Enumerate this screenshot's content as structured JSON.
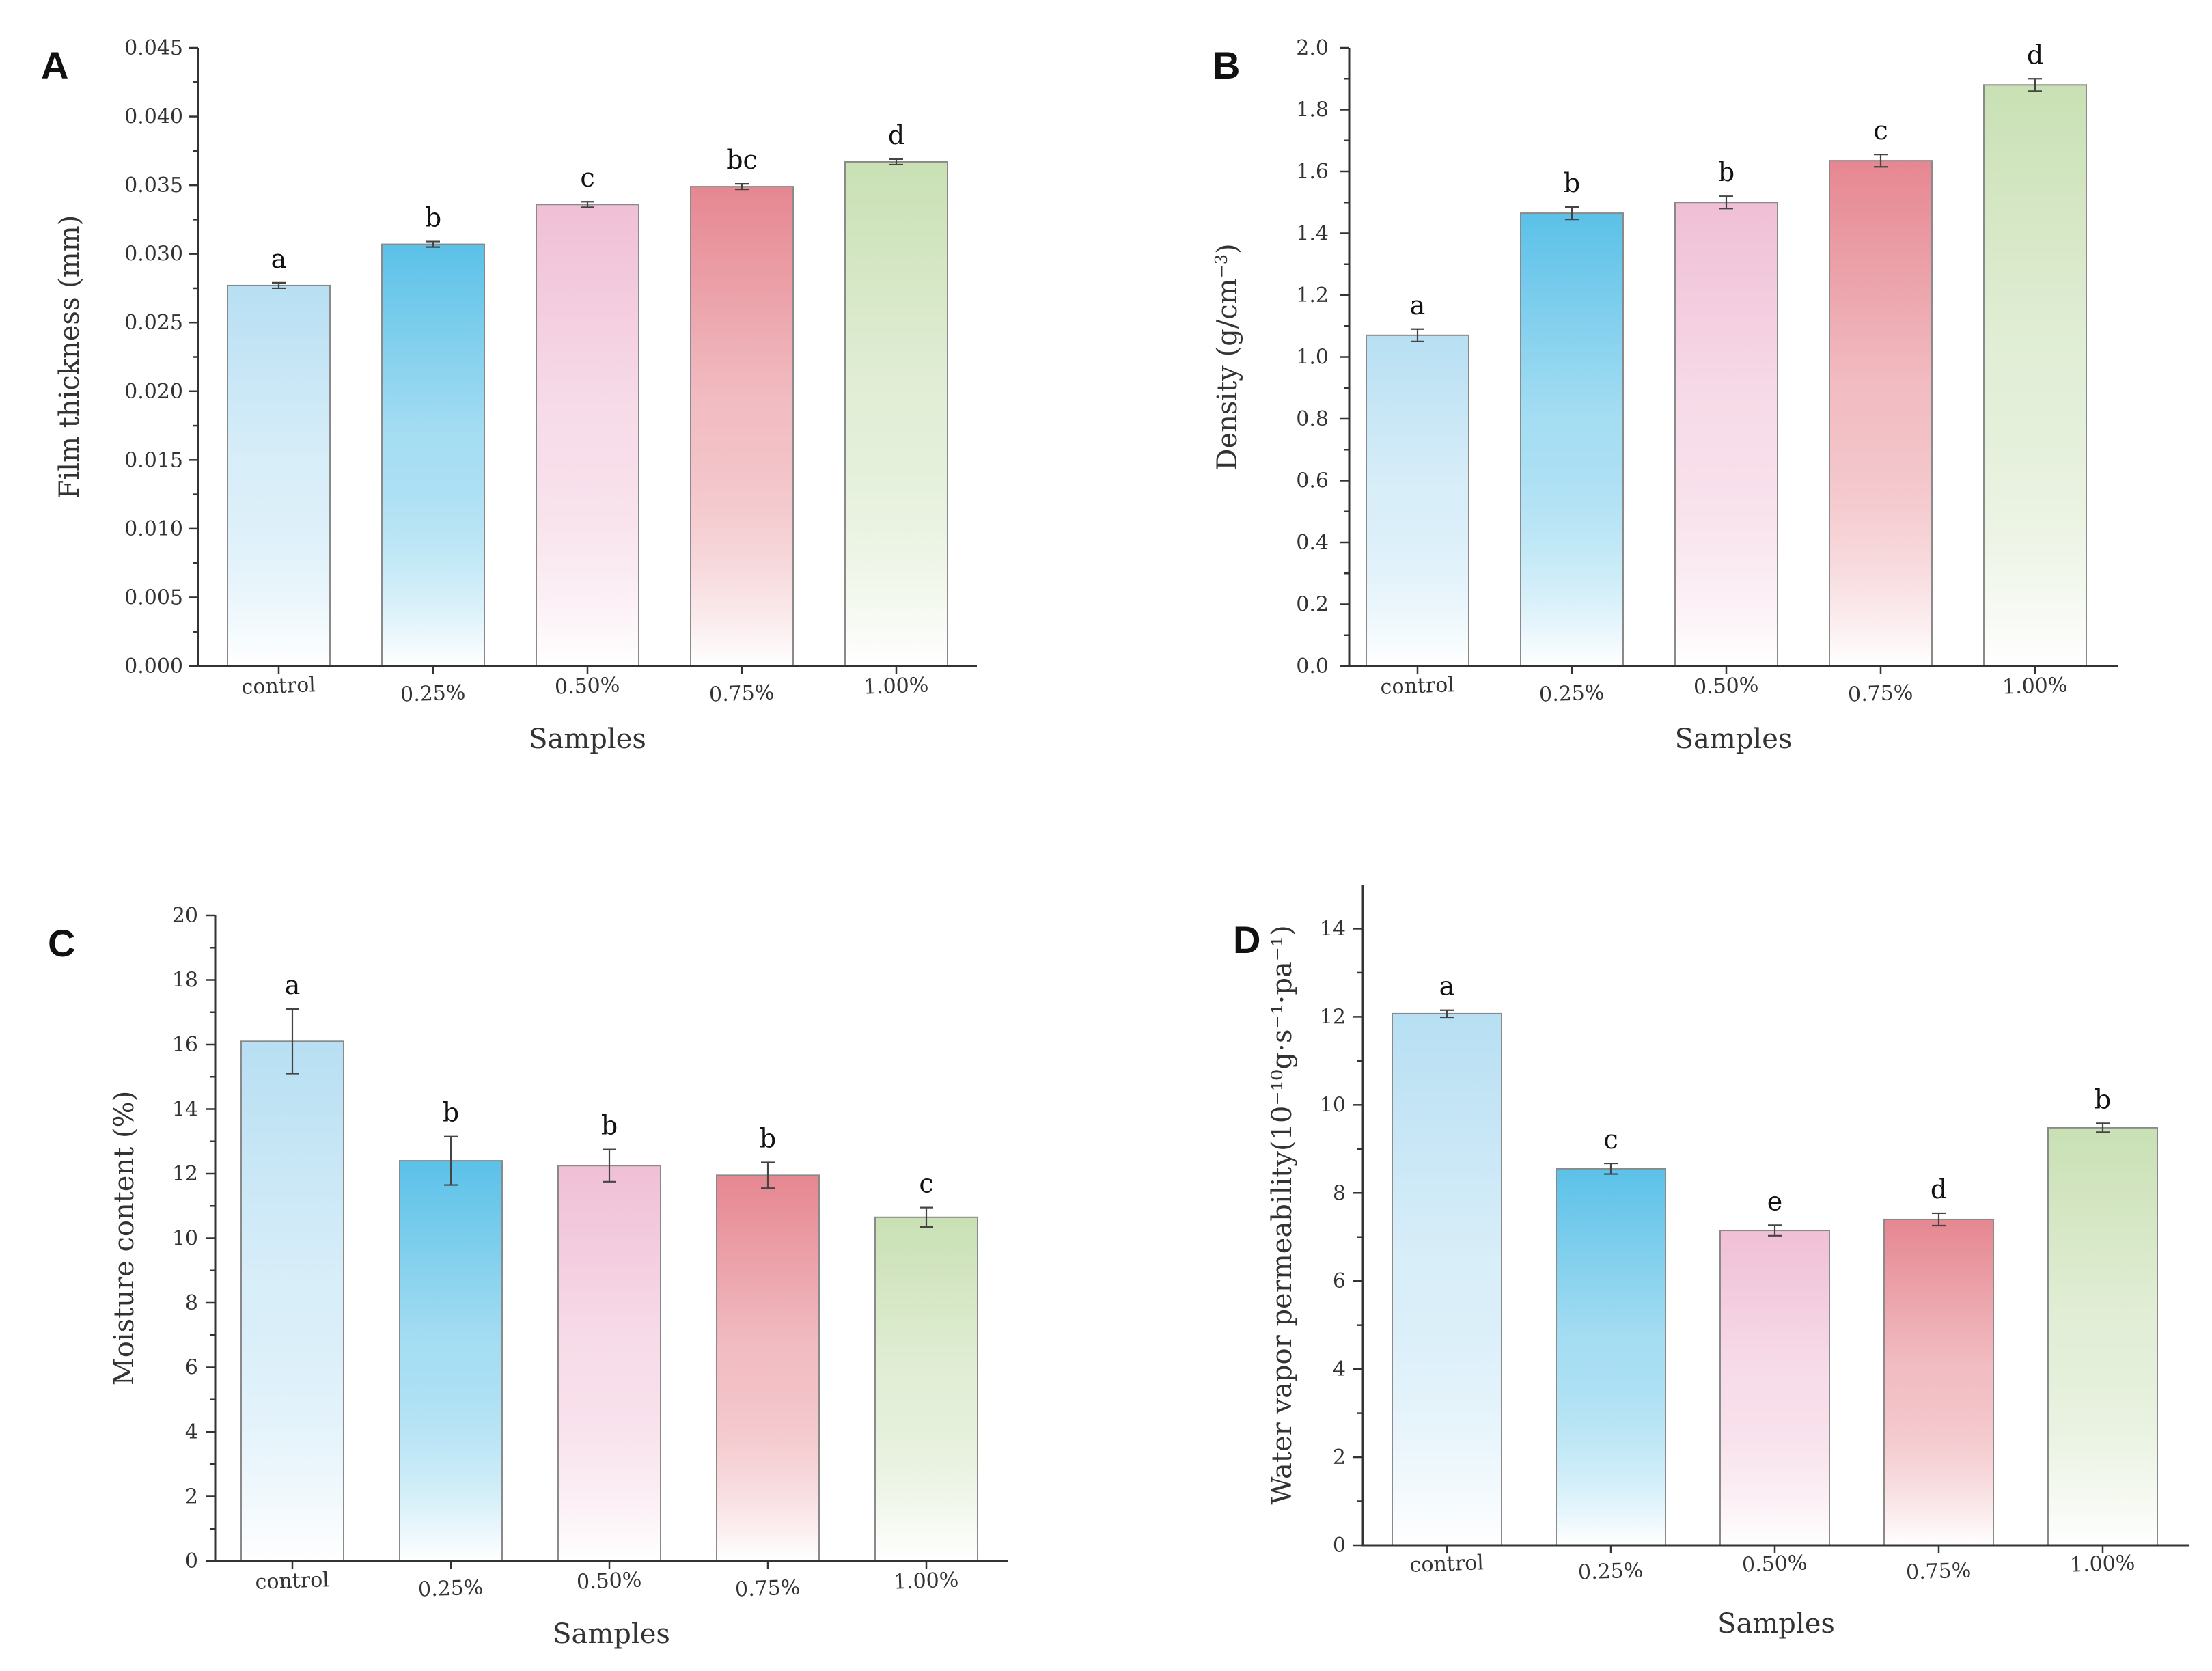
{
  "colors": {
    "control": "#b7dff3",
    "p025": "#5bc1e8",
    "p050": "#f0bfd6",
    "p075": "#e68791",
    "p100": "#c9e0b4"
  },
  "chart_data": [
    {
      "type": "bar",
      "panel": "A",
      "title": "",
      "xlabel": "Samples",
      "ylabel": "Film thickness (mm)",
      "ylabel_sup": "",
      "ylabel_tail": "",
      "categories": [
        "control",
        "0.25%",
        "0.50%",
        "0.75%",
        "1.00%"
      ],
      "values": [
        0.0277,
        0.0307,
        0.0336,
        0.0349,
        0.0367
      ],
      "errors": [
        0.0002,
        0.0002,
        0.0002,
        0.0002,
        0.0002
      ],
      "significance": [
        "a",
        "b",
        "c",
        "bc",
        "d"
      ],
      "ylim": [
        0,
        0.045
      ],
      "yticks": [
        0,
        0.005,
        0.01,
        0.015,
        0.02,
        0.025,
        0.03,
        0.035,
        0.04,
        0.045
      ],
      "ytick_labels": [
        "0.000",
        "0.005",
        "0.010",
        "0.015",
        "0.020",
        "0.025",
        "0.030",
        "0.035",
        "0.040",
        "0.045"
      ],
      "minor_ticks": true
    },
    {
      "type": "bar",
      "panel": "B",
      "title": "",
      "xlabel": "Samples",
      "ylabel": "Density (g/cm",
      "ylabel_sup": "−3",
      "ylabel_tail": ")",
      "categories": [
        "control",
        "0.25%",
        "0.50%",
        "0.75%",
        "1.00%"
      ],
      "values": [
        1.07,
        1.465,
        1.5,
        1.635,
        1.88
      ],
      "errors": [
        0.02,
        0.02,
        0.02,
        0.02,
        0.02
      ],
      "significance": [
        "a",
        "b",
        "b",
        "c",
        "d"
      ],
      "ylim": [
        0,
        2.0
      ],
      "yticks": [
        0,
        0.2,
        0.4,
        0.6,
        0.8,
        1.0,
        1.2,
        1.4,
        1.6,
        1.8,
        2.0
      ],
      "ytick_labels": [
        "0.0",
        "0.2",
        "0.4",
        "0.6",
        "0.8",
        "1.0",
        "1.2",
        "1.4",
        "1.6",
        "1.8",
        "2.0"
      ],
      "minor_ticks": true
    },
    {
      "type": "bar",
      "panel": "C",
      "title": "",
      "xlabel": "Samples",
      "ylabel": "Moisture content (%)",
      "ylabel_sup": "",
      "ylabel_tail": "",
      "categories": [
        "control",
        "0.25%",
        "0.50%",
        "0.75%",
        "1.00%"
      ],
      "values": [
        16.1,
        12.4,
        12.25,
        11.95,
        10.65
      ],
      "errors": [
        1.0,
        0.75,
        0.5,
        0.4,
        0.3
      ],
      "significance": [
        "a",
        "b",
        "b",
        "b",
        "c"
      ],
      "ylim": [
        0,
        20
      ],
      "yticks": [
        0,
        2,
        4,
        6,
        8,
        10,
        12,
        14,
        16,
        18,
        20
      ],
      "ytick_labels": [
        "0",
        "2",
        "4",
        "6",
        "8",
        "10",
        "12",
        "14",
        "16",
        "18",
        "20"
      ],
      "minor_ticks": true
    },
    {
      "type": "bar",
      "panel": "D",
      "title": "",
      "xlabel": "Samples",
      "ylabel": "Water vapor permeability(10⁻¹⁰g·s⁻¹·pa⁻¹)",
      "ylabel_sup": "",
      "ylabel_tail": "",
      "categories": [
        "control",
        "0.25%",
        "0.50%",
        "0.75%",
        "1.00%"
      ],
      "values": [
        12.07,
        8.55,
        7.15,
        7.4,
        9.48
      ],
      "errors": [
        0.08,
        0.12,
        0.12,
        0.14,
        0.1
      ],
      "significance": [
        "a",
        "c",
        "e",
        "d",
        "b"
      ],
      "ylim": [
        0,
        15
      ],
      "yticks": [
        0,
        2,
        4,
        6,
        8,
        10,
        12,
        14
      ],
      "ytick_labels": [
        "0",
        "2",
        "4",
        "6",
        "8",
        "10",
        "12",
        "14"
      ],
      "minor_ticks": true
    }
  ]
}
